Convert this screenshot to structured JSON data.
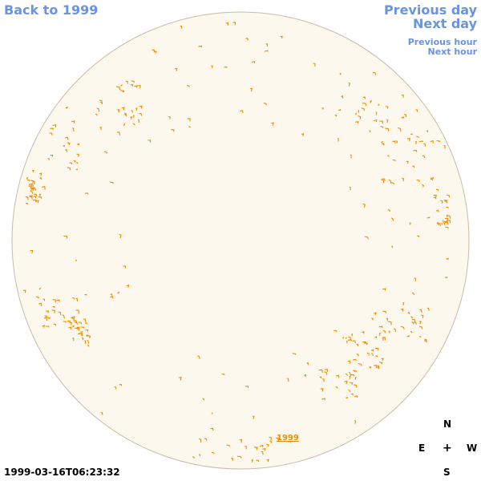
{
  "nav": {
    "back": "Back to 1999",
    "previous_day": "Previous day",
    "next_day": "Next day",
    "previous_hour": "Previous hour",
    "next_hour": "Next hour"
  },
  "timestamp": "1999-03-16T06:23:32",
  "compass": {
    "n": "N",
    "e": "E",
    "w": "W",
    "s": "S",
    "center": "+"
  },
  "year_label": "1999",
  "colors": {
    "disk_fill": "#fdf8ee",
    "disk_border": "#c8bba8",
    "contour": "#f08c00",
    "link": "#6a93e0"
  }
}
